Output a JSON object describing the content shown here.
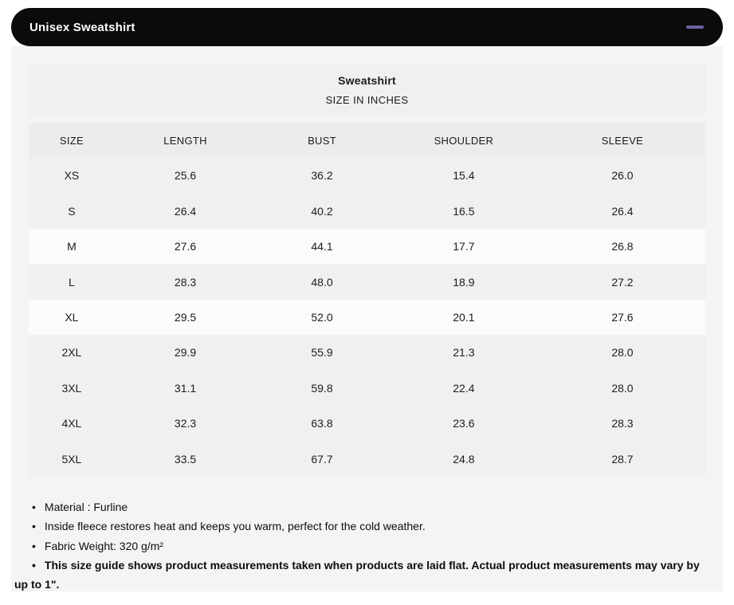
{
  "accordion": {
    "title": "Unisex Sweatshirt",
    "bar_color": "#0b0b0b",
    "minus_icon_color": "#6a63a0"
  },
  "size_chart": {
    "title": "Sweatshirt",
    "subtitle": "SIZE IN INCHES",
    "columns": [
      "SIZE",
      "LENGTH",
      "BUST",
      "SHOULDER",
      "SLEEVE"
    ],
    "rows": [
      {
        "size": "XS",
        "length": "25.6",
        "bust": "36.2",
        "shoulder": "15.4",
        "sleeve": "26.0",
        "shade": "gray"
      },
      {
        "size": "S",
        "length": "26.4",
        "bust": "40.2",
        "shoulder": "16.5",
        "sleeve": "26.4",
        "shade": "gray"
      },
      {
        "size": "M",
        "length": "27.6",
        "bust": "44.1",
        "shoulder": "17.7",
        "sleeve": "26.8",
        "shade": "light"
      },
      {
        "size": "L",
        "length": "28.3",
        "bust": "48.0",
        "shoulder": "18.9",
        "sleeve": "27.2",
        "shade": "gray"
      },
      {
        "size": "XL",
        "length": "29.5",
        "bust": "52.0",
        "shoulder": "20.1",
        "sleeve": "27.6",
        "shade": "light"
      },
      {
        "size": "2XL",
        "length": "29.9",
        "bust": "55.9",
        "shoulder": "21.3",
        "sleeve": "28.0",
        "shade": "gray"
      },
      {
        "size": "3XL",
        "length": "31.1",
        "bust": "59.8",
        "shoulder": "22.4",
        "sleeve": "28.0",
        "shade": "gray"
      },
      {
        "size": "4XL",
        "length": "32.3",
        "bust": "63.8",
        "shoulder": "23.6",
        "sleeve": "28.3",
        "shade": "gray"
      },
      {
        "size": "5XL",
        "length": "33.5",
        "bust": "67.7",
        "shoulder": "24.8",
        "sleeve": "28.7",
        "shade": "gray"
      }
    ]
  },
  "notes": [
    {
      "text": "Material : Furline",
      "bold": false
    },
    {
      "text": "Inside fleece restores heat and keeps you warm, perfect for the cold weather.",
      "bold": false
    },
    {
      "text": "Fabric Weight: 320 g/m²",
      "bold": false
    },
    {
      "text": "This size guide shows product measurements taken when products are laid flat. Actual product measurements may vary by up to 1\".",
      "bold": true
    }
  ]
}
